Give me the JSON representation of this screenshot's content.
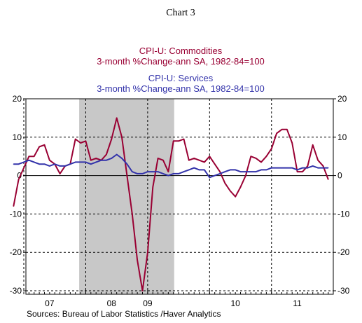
{
  "chart_data": {
    "type": "line",
    "chart_label": "Chart 3",
    "title_lines": [
      {
        "text": "CPI-U: Commodities",
        "series": 0
      },
      {
        "text": "3-month %Change-ann     SA, 1982-84=100",
        "series": 0
      },
      {
        "text": "CPI-U: Services",
        "series": 1
      },
      {
        "text": "3-month %Change-ann     SA, 1982-84=100",
        "series": 1
      }
    ],
    "source": "Sources:  Bureau of Labor Statistics /Haver Analytics",
    "x": [
      "2006-11",
      "2006-12",
      "2007-01",
      "2007-02",
      "2007-03",
      "2007-04",
      "2007-05",
      "2007-06",
      "2007-07",
      "2007-08",
      "2007-09",
      "2007-10",
      "2007-11",
      "2007-12",
      "2008-01",
      "2008-02",
      "2008-03",
      "2008-04",
      "2008-05",
      "2008-06",
      "2008-07",
      "2008-08",
      "2008-09",
      "2008-10",
      "2008-11",
      "2008-12",
      "2009-01",
      "2009-02",
      "2009-03",
      "2009-04",
      "2009-05",
      "2009-06",
      "2009-07",
      "2009-08",
      "2009-09",
      "2009-10",
      "2009-11",
      "2009-12",
      "2010-01",
      "2010-02",
      "2010-03",
      "2010-04",
      "2010-05",
      "2010-06",
      "2010-07",
      "2010-08",
      "2010-09",
      "2010-10",
      "2010-11",
      "2010-12",
      "2011-01",
      "2011-02",
      "2011-03",
      "2011-04",
      "2011-05",
      "2011-06",
      "2011-07",
      "2011-08",
      "2011-09",
      "2011-10",
      "2011-11",
      "2011-12"
    ],
    "series": [
      {
        "name": "CPI-U: Commodities",
        "color": "#990033",
        "values": [
          -8,
          -1,
          2,
          5,
          5,
          7.5,
          8,
          4,
          3,
          0.5,
          2.5,
          3,
          9.5,
          8.5,
          9,
          4,
          4.5,
          4,
          5.5,
          9.5,
          15,
          10,
          0,
          -10,
          -22,
          -30,
          -20,
          -3,
          4.5,
          4,
          1,
          9,
          9,
          9.5,
          4,
          4.5,
          4,
          3.5,
          5,
          3,
          1,
          -2,
          -4,
          -5.5,
          -3,
          0,
          5,
          4.5,
          3.5,
          5,
          7,
          11,
          12,
          12,
          8.5,
          1,
          1,
          2.5,
          8,
          4,
          2.5,
          -1
        ]
      },
      {
        "name": "CPI-U: Services",
        "color": "#3333aa",
        "values": [
          3,
          3,
          3.5,
          4,
          3.5,
          3,
          3,
          2.5,
          3,
          2.5,
          2.5,
          3,
          3.5,
          3.5,
          3.5,
          3,
          3.5,
          4,
          4,
          4.5,
          5.5,
          4.5,
          3,
          1,
          0.5,
          0.5,
          1,
          1,
          1,
          0.5,
          0,
          0.5,
          0.5,
          1,
          1.5,
          2,
          1.5,
          1.5,
          -0.5,
          0,
          0.5,
          1,
          1.5,
          1.5,
          1,
          1,
          1,
          1,
          1.5,
          1.5,
          2,
          2,
          2,
          2,
          2,
          1.5,
          2,
          2,
          2.5,
          2,
          2,
          2
        ]
      }
    ],
    "ylim": [
      -31,
      20
    ],
    "yticks": [
      20,
      10,
      0,
      -10,
      -20,
      -30
    ],
    "year_labels": [
      {
        "label": "07",
        "month": "2007-06"
      },
      {
        "label": "08",
        "month": "2008-06"
      },
      {
        "label": "09",
        "month": "2009-01"
      },
      {
        "label": "10",
        "month": "2010-06"
      },
      {
        "label": "11",
        "month": "2011-06"
      }
    ],
    "recession": {
      "start": "2007-12",
      "end": "2009-06",
      "color": "#c8c8c8"
    },
    "grid": true,
    "zero_line": true
  }
}
